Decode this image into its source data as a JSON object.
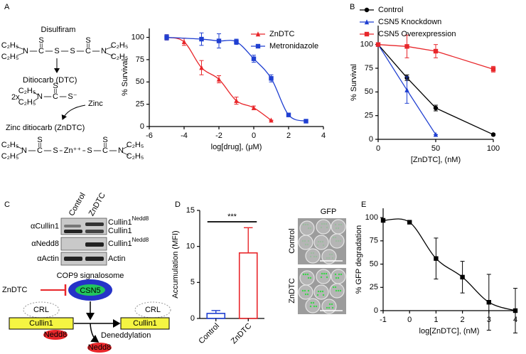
{
  "panel_labels": [
    "A",
    "B",
    "C",
    "D",
    "E"
  ],
  "diagram_a": {
    "title": "Disulfiram",
    "arrow_label": "Ditiocarb (DTC)",
    "multiplier": "2x",
    "metal": "Zinc",
    "product": "Zinc ditiocarb (ZnDTC)",
    "ethyl": "C₂H₅",
    "thione": "S",
    "disulfiram_chain": [
      "N",
      "C",
      "S",
      "S",
      "C",
      "N"
    ],
    "dtc_chain": [
      "N",
      "C",
      "S⁻"
    ],
    "zndtc_chain": [
      "N",
      "C",
      "S",
      "Zn⁺⁺",
      "S",
      "C",
      "N"
    ]
  },
  "chart_data": [
    {
      "type": "line",
      "xlabel": "log[drug], (μM)",
      "ylabel": "% Survival",
      "xlim": [
        -6,
        4
      ],
      "xticks": [
        -6,
        -4,
        -2,
        0,
        2,
        4
      ],
      "ylim": [
        0,
        110
      ],
      "yticks": [
        0,
        25,
        50,
        75,
        100
      ],
      "smooth": true,
      "legend": "upper right",
      "series": [
        {
          "name": "ZnDTC",
          "color": "#e8262a",
          "marker": "triangle",
          "x": [
            -5,
            -4,
            -3,
            -2,
            -1,
            0,
            1
          ],
          "values": [
            100,
            95,
            66,
            53,
            29,
            21,
            7
          ],
          "errors": [
            3,
            4,
            8,
            4,
            4,
            2,
            0
          ]
        },
        {
          "name": "Metronidazole",
          "color": "#1f3fd1",
          "marker": "square",
          "x": [
            -5,
            -3,
            -2,
            -1,
            0,
            1,
            2,
            3
          ],
          "values": [
            100,
            98,
            96,
            95,
            76,
            54,
            13,
            6
          ],
          "errors": [
            3,
            7,
            8,
            3,
            4,
            4,
            1,
            1
          ]
        }
      ]
    },
    {
      "type": "line",
      "xlabel": "[ZnDTC], (nM)",
      "ylabel": "% Survival",
      "xlim": [
        0,
        100
      ],
      "xticks": [
        0,
        50,
        100
      ],
      "ylim": [
        0,
        120
      ],
      "yticks": [
        0,
        25,
        50,
        75,
        100
      ],
      "smooth": false,
      "legend": "upper left",
      "series": [
        {
          "name": "Control",
          "color": "#000000",
          "marker": "circle",
          "x": [
            0,
            25,
            50,
            100
          ],
          "values": [
            100,
            65,
            33,
            5
          ],
          "errors": [
            0,
            3,
            3,
            1
          ]
        },
        {
          "name": "CSN5 Knockdown",
          "color": "#1f3fd1",
          "marker": "triangle",
          "x": [
            0,
            25,
            50
          ],
          "values": [
            100,
            52,
            5
          ],
          "errors": [
            0,
            14,
            0
          ]
        },
        {
          "name": "CSN5 Overexpression",
          "color": "#e8262a",
          "marker": "square",
          "x": [
            0,
            25,
            50,
            100
          ],
          "values": [
            100,
            98,
            93,
            74
          ],
          "errors": [
            0,
            12,
            7,
            3
          ]
        }
      ]
    },
    {
      "type": "bar",
      "ylabel": "Accumulation (MFI)",
      "categories": [
        "Control",
        "ZnDTC"
      ],
      "values": [
        0.7,
        9.1
      ],
      "errors": [
        0.4,
        3.5
      ],
      "colors": [
        "#1f3fd1",
        "#e8262a"
      ],
      "ylim": [
        0,
        15
      ],
      "yticks": [
        0,
        5,
        10,
        15
      ],
      "significance": "***"
    },
    {
      "type": "line",
      "xlabel": "log[ZnDTC], (nM)",
      "ylabel": "% GFP degradation",
      "xlim": [
        -1,
        4
      ],
      "xticks": [
        -1,
        0,
        1,
        2,
        3,
        4
      ],
      "ylim": [
        0,
        110
      ],
      "yticks": [
        0,
        25,
        50,
        75,
        100
      ],
      "smooth": true,
      "series": [
        {
          "color": "#000000",
          "marker": "square",
          "x": [
            -1,
            0,
            1,
            2,
            3,
            4
          ],
          "values": [
            97,
            95,
            56,
            36,
            9,
            0
          ],
          "errors": [
            2,
            1,
            22,
            17,
            30,
            24
          ]
        }
      ]
    }
  ],
  "blot_c": {
    "lanes": [
      "Control",
      "ZnDTC"
    ],
    "antibodies": [
      "αCullin1",
      "αNedd8",
      "αActin"
    ],
    "bands": [
      [
        {
          "name": "Cullin1",
          "sup": "Nedd8"
        },
        {
          "name": "Cullin1"
        }
      ],
      [
        {
          "name": "Cullin1",
          "sup": "Nedd8"
        }
      ],
      [
        {
          "name": "Actin"
        }
      ]
    ]
  },
  "diagram_c": {
    "complex": "COP9 signalosome",
    "subunit": "CSN5",
    "inhibitor": "ZnDTC",
    "ligase": "CRL",
    "scaffold": "Cullin1",
    "modifier": "Nedd8",
    "process": "Deneddylation"
  },
  "images_d": {
    "channel": "GFP",
    "conditions": [
      "Control",
      "ZnDTC"
    ]
  }
}
